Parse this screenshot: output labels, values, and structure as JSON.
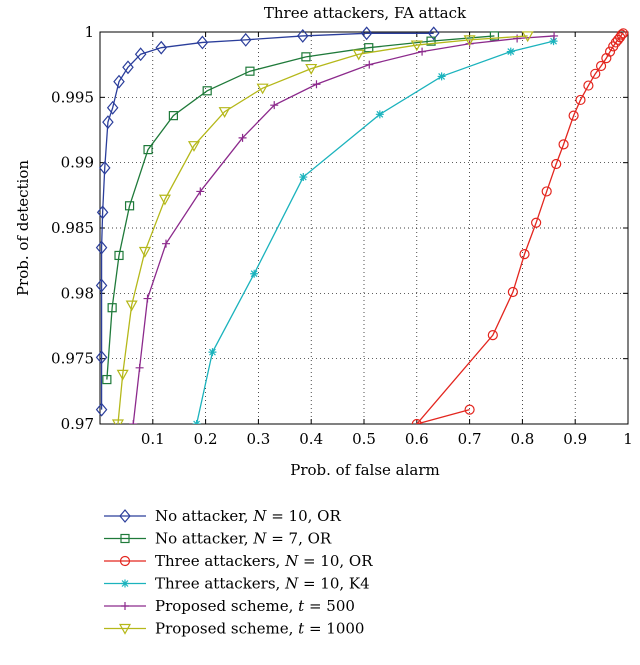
{
  "chart_data": {
    "type": "line",
    "title": "Three attackers, FA attack",
    "xlabel": "Prob. of false alarm",
    "ylabel": "Prob. of detection",
    "xlim": [
      0,
      1
    ],
    "ylim": [
      0.97,
      1
    ],
    "xticks": [
      0.1,
      0.2,
      0.3,
      0.4,
      0.5,
      0.6,
      0.7,
      0.8,
      0.9,
      1
    ],
    "xtick_labels": [
      "0.1",
      "0.2",
      "0.3",
      "0.4",
      "0.5",
      "0.6",
      "0.7",
      "0.8",
      "0.9",
      "1"
    ],
    "yticks": [
      0.97,
      0.975,
      0.98,
      0.985,
      0.99,
      0.995,
      1
    ],
    "ytick_labels": [
      "0.97",
      "0.975",
      "0.98",
      "0.985",
      "0.99",
      "0.995",
      "1"
    ],
    "grid": true,
    "legend_position": "below",
    "series": [
      {
        "name": "No attacker, N = 10, OR",
        "legend_parts": [
          "No attacker, ",
          "N",
          " = 10, OR"
        ],
        "color": "#2b3e9b",
        "marker": "diamond",
        "x": [
          0.003,
          0.003,
          0.003,
          0.003,
          0.005,
          0.009,
          0.015,
          0.024,
          0.036,
          0.053,
          0.077,
          0.116,
          0.194,
          0.276,
          0.384,
          0.505,
          0.632
        ],
        "y": [
          0.9711,
          0.9751,
          0.9806,
          0.9835,
          0.9862,
          0.9896,
          0.9931,
          0.9942,
          0.9962,
          0.9973,
          0.9983,
          0.9988,
          0.9992,
          0.9994,
          0.9997,
          0.9999,
          0.9999
        ]
      },
      {
        "name": "No attacker, N = 7, OR",
        "legend_parts": [
          "No attacker, ",
          "N",
          " = 7, OR"
        ],
        "color": "#1f7a3a",
        "marker": "square",
        "x": [
          0.013,
          0.023,
          0.036,
          0.056,
          0.091,
          0.139,
          0.203,
          0.284,
          0.39,
          0.509,
          0.627,
          0.747
        ],
        "y": [
          0.9734,
          0.9789,
          0.9829,
          0.9867,
          0.991,
          0.9936,
          0.9955,
          0.997,
          0.9981,
          0.9988,
          0.9993,
          0.9997
        ]
      },
      {
        "name": "Three attackers, N = 10, OR",
        "legend_parts": [
          "Three attackers, ",
          "N",
          " = 10, OR"
        ],
        "color": "#e3261f",
        "marker": "circle",
        "x": [
          0.7,
          0.6,
          0.744,
          0.782,
          0.804,
          0.826,
          0.846,
          0.864,
          0.878,
          0.897,
          0.91,
          0.925,
          0.938,
          0.949,
          0.959,
          0.966,
          0.972,
          0.977,
          0.981,
          0.985,
          0.988,
          0.991
        ],
        "y": [
          0.9711,
          0.97,
          0.9768,
          0.9801,
          0.983,
          0.9854,
          0.9878,
          0.9899,
          0.9914,
          0.9936,
          0.9948,
          0.9959,
          0.9968,
          0.9974,
          0.998,
          0.9985,
          0.9989,
          0.9992,
          0.9994,
          0.9996,
          0.9998,
          0.9999
        ]
      },
      {
        "name": "Three attackers, N = 10, K4",
        "legend_parts": [
          "Three attackers, ",
          "N",
          " = 10, K4"
        ],
        "color": "#1bb3bd",
        "marker": "star",
        "x": [
          0.183,
          0.213,
          0.292,
          0.385,
          0.53,
          0.647,
          0.778,
          0.859
        ],
        "y": [
          0.97,
          0.9755,
          0.9815,
          0.9889,
          0.9937,
          0.9966,
          0.9985,
          0.9993
        ]
      },
      {
        "name": "Proposed scheme, t = 500",
        "legend_parts": [
          "Proposed scheme, ",
          "t",
          " = 500"
        ],
        "color": "#8c2a8c",
        "marker": "plus",
        "x": [
          0.063,
          0.075,
          0.09,
          0.125,
          0.19,
          0.27,
          0.33,
          0.41,
          0.51,
          0.61,
          0.7,
          0.79,
          0.86
        ],
        "y": [
          0.97,
          0.9743,
          0.9796,
          0.9838,
          0.9878,
          0.9919,
          0.9944,
          0.996,
          0.9975,
          0.9985,
          0.9991,
          0.9995,
          0.9997
        ]
      },
      {
        "name": "Proposed scheme, t = 1000",
        "legend_parts": [
          "Proposed scheme, ",
          "t",
          " = 1000"
        ],
        "color": "#b5b81a",
        "marker": "triangle-down",
        "x": [
          0.034,
          0.043,
          0.06,
          0.085,
          0.123,
          0.178,
          0.236,
          0.308,
          0.4,
          0.49,
          0.6,
          0.7,
          0.81
        ],
        "y": [
          0.97,
          0.9738,
          0.9791,
          0.9832,
          0.9872,
          0.9913,
          0.9939,
          0.9957,
          0.9972,
          0.9983,
          0.999,
          0.9994,
          0.9997
        ]
      }
    ]
  }
}
